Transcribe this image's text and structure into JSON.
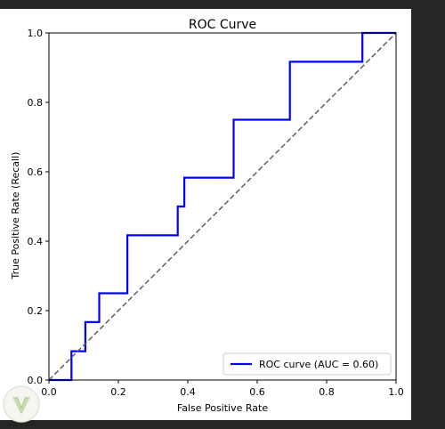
{
  "chart_data": {
    "type": "line",
    "title": "ROC Curve",
    "xlabel": "False Positive Rate",
    "ylabel": "True Positive Rate (Recall)",
    "xlim": [
      0.0,
      1.0
    ],
    "ylim": [
      0.0,
      1.0
    ],
    "xticks": [
      "0.0",
      "0.2",
      "0.4",
      "0.6",
      "0.8",
      "1.0"
    ],
    "yticks": [
      "0.0",
      "0.2",
      "0.4",
      "0.6",
      "0.8",
      "1.0"
    ],
    "grid": false,
    "legend_position": "lower-right",
    "series": [
      {
        "name": "ROC curve (AUC = 0.60)",
        "color": "#0000ff",
        "style": "step",
        "x": [
          0.0,
          0.065,
          0.065,
          0.065,
          0.105,
          0.105,
          0.145,
          0.145,
          0.226,
          0.226,
          0.371,
          0.371,
          0.39,
          0.39,
          0.532,
          0.532,
          0.694,
          0.694,
          0.903,
          0.903,
          1.0
        ],
        "y": [
          0.0,
          0.0,
          0.0,
          0.083,
          0.083,
          0.167,
          0.167,
          0.25,
          0.25,
          0.417,
          0.417,
          0.5,
          0.5,
          0.583,
          0.583,
          0.75,
          0.75,
          0.917,
          0.917,
          1.0,
          1.0
        ]
      },
      {
        "role": "chance-line",
        "color": "#555555",
        "dashed": true,
        "x": [
          0.0,
          1.0
        ],
        "y": [
          0.0,
          1.0
        ]
      }
    ]
  }
}
